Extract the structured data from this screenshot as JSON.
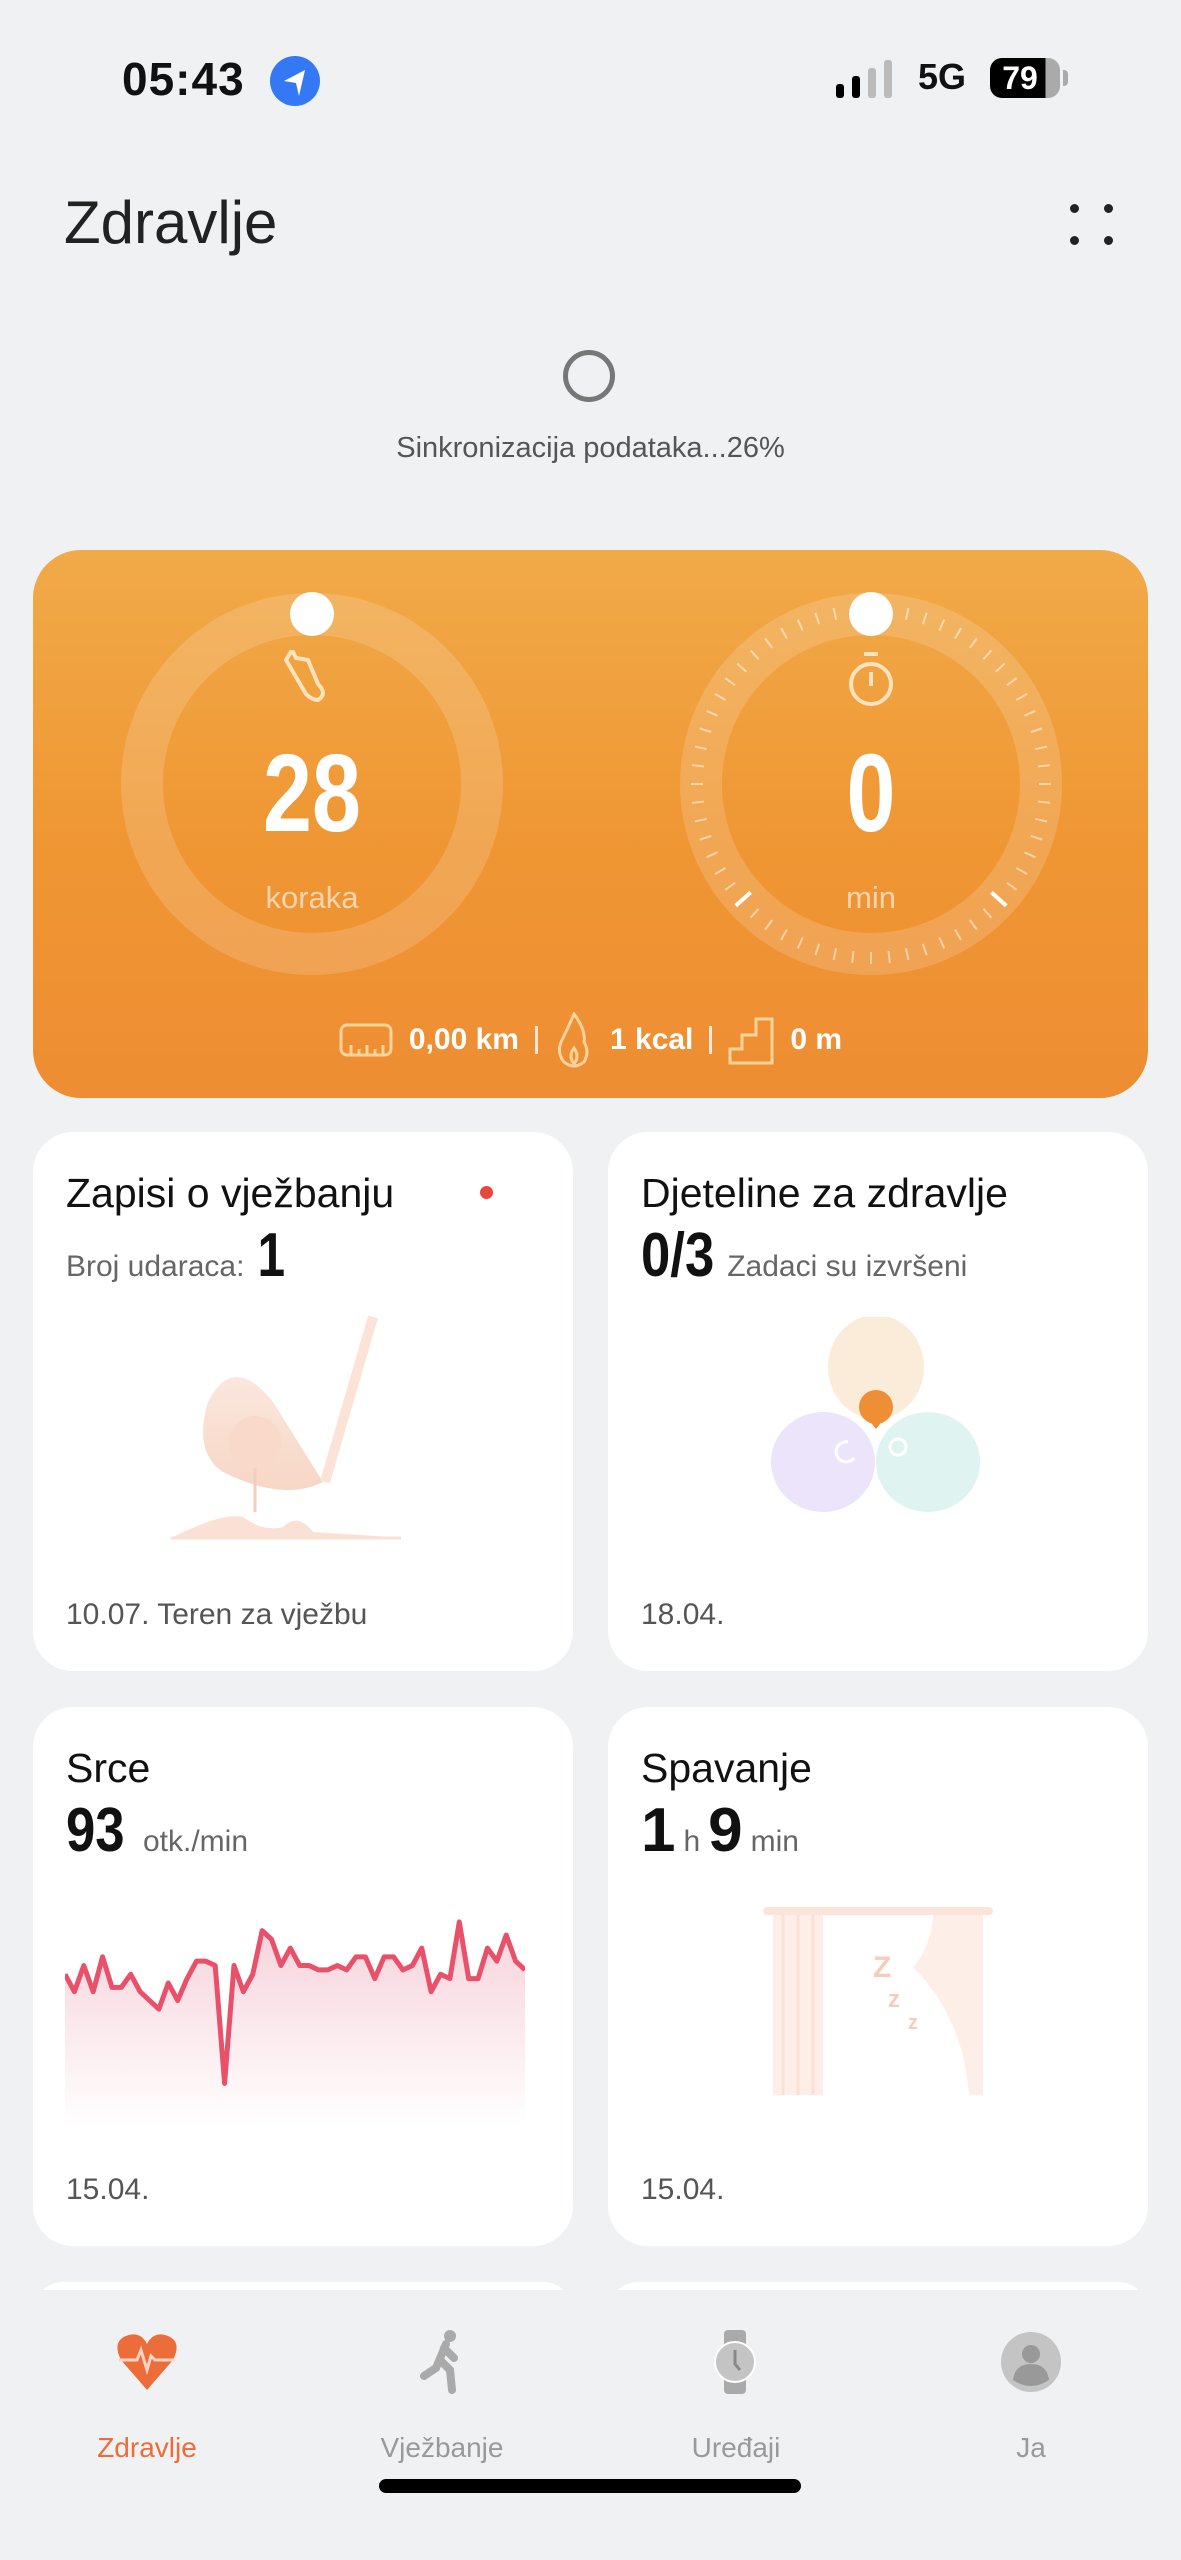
{
  "status_bar": {
    "time": "05:43",
    "network": "5G",
    "battery": "79",
    "icons": [
      "location-arrow-icon",
      "signal-icon",
      "battery-icon"
    ]
  },
  "header": {
    "title": "Zdravlje",
    "menu_icon": "more-dots-icon"
  },
  "sync": {
    "text": "Sinkronizacija podataka...26%",
    "percent": 26
  },
  "activity": {
    "steps": {
      "value": "28",
      "unit": "koraka",
      "icon": "shoe-icon"
    },
    "active_time": {
      "value": "0",
      "unit": "min",
      "icon": "stopwatch-icon"
    },
    "stats": [
      {
        "icon": "ruler-icon",
        "text": "0,00 km"
      },
      {
        "icon": "flame-icon",
        "text": "1 kcal"
      },
      {
        "icon": "stairs-icon",
        "text": "0 m"
      }
    ],
    "colors": {
      "top": "#f1aa48",
      "bottom": "#ee8d33"
    }
  },
  "cards": {
    "exercise": {
      "title": "Zapisi o vježbanju",
      "label": "Broj udaraca:",
      "value": "1",
      "date": "10.07. Teren za vježbu",
      "badge_color": "#e8473c"
    },
    "clover": {
      "title": "Djeteline za zdravlje",
      "value": "0/3",
      "label": "Zadaci su izvršeni",
      "date": "18.04."
    },
    "heart": {
      "title": "Srce",
      "value": "93",
      "unit": "otk./min",
      "date": "15.04.",
      "line_color": "#e9506a",
      "chart_data": {
        "type": "area",
        "values": [
          90,
          86,
          92,
          86,
          94,
          87,
          87,
          90,
          86,
          84,
          82,
          88,
          84,
          89,
          93,
          93,
          92,
          65,
          92,
          86,
          90,
          100,
          98,
          92,
          96,
          92,
          92,
          91,
          91,
          92,
          91,
          94,
          94,
          89,
          94,
          94,
          91,
          92,
          96,
          86,
          90,
          89,
          102,
          89,
          89,
          96,
          93,
          99,
          93,
          91
        ]
      }
    },
    "sleep": {
      "title": "Spavanje",
      "hours": "1",
      "h_unit": "h",
      "minutes": "9",
      "m_unit": "min",
      "date": "15.04."
    }
  },
  "tabs": [
    {
      "label": "Zdravlje",
      "icon": "heart-pulse-icon",
      "active": true
    },
    {
      "label": "Vježbanje",
      "icon": "running-icon",
      "active": false
    },
    {
      "label": "Uređaji",
      "icon": "watch-icon",
      "active": false
    },
    {
      "label": "Ja",
      "icon": "profile-icon",
      "active": false
    }
  ],
  "accent": "#ec6d3a"
}
